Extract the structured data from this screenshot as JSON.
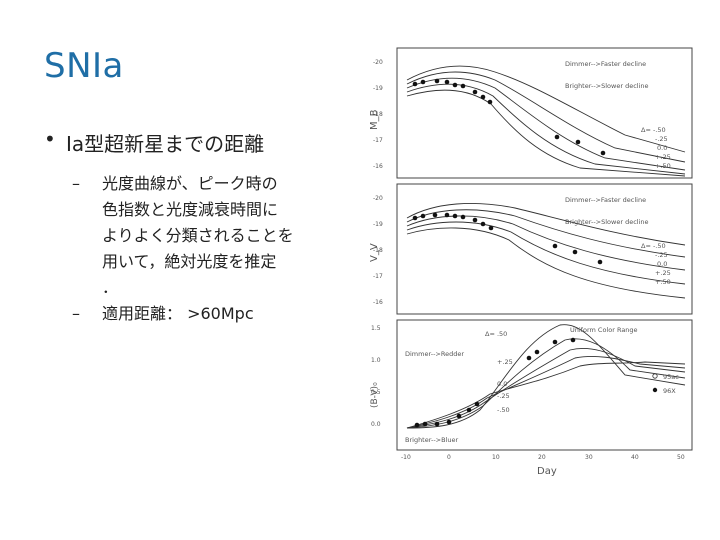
{
  "slide": {
    "title": "SNIa",
    "bullet": "Ia型超新星までの距離",
    "sub1_lines": [
      "光度曲線が、ピーク時の",
      "色指数と光度減衰時間に",
      "よりよく分類されることを",
      "用いて，絶対光度を推定",
      "．"
    ],
    "sub2": "適用距離： >60Mpc",
    "bullet_mark": "•",
    "dash_mark": "–"
  },
  "figure": {
    "panel1": {
      "ylabel": "M_B",
      "note_top": "Dimmer-->Faster decline",
      "note_bottom": "Brighter-->Slower decline",
      "delta_labels": [
        "Δ= -.50",
        "-.25",
        "0.0",
        "+.25",
        "+.50"
      ],
      "yticks": [
        "-20",
        "-19",
        "-18",
        "-17",
        "-16"
      ]
    },
    "panel2": {
      "ylabel": "V_V",
      "note_top": "Dimmer-->Faster decline",
      "note_bottom": "Brighter-->Slower decline",
      "delta_labels": [
        "Δ= -.50",
        "-.25",
        "0.0",
        "+.25",
        "+.50"
      ],
      "yticks": [
        "-20",
        "-19",
        "-18",
        "-17",
        "-16"
      ]
    },
    "panel3": {
      "ylabel": "(B-V)₀",
      "note_top": "Uniform Color Range",
      "note_dimmer": "Dimmer-->Redder",
      "note_brighter": "Brighter-->Bluer",
      "delta_labels": [
        "Δ= .50",
        "+.25",
        "0.0",
        "-.25",
        "-.50"
      ],
      "legend": [
        "95ac",
        "96X"
      ],
      "yticks": [
        "1.5",
        "1.0",
        "0.5",
        "0.0"
      ]
    },
    "xlabel": "Day",
    "xticks": [
      "-10",
      "0",
      "10",
      "20",
      "30",
      "40",
      "50"
    ]
  }
}
